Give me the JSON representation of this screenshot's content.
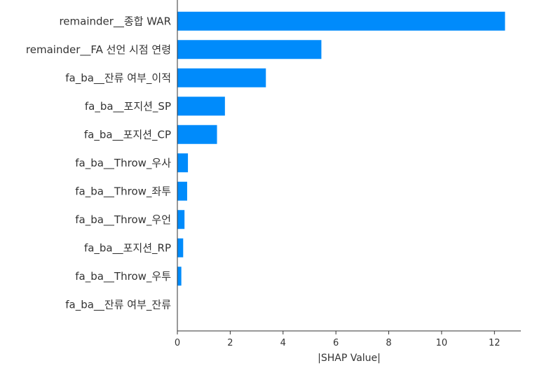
{
  "chart_data": {
    "type": "bar",
    "orientation": "horizontal",
    "categories": [
      "remainder__종합 WAR",
      "remainder__FA 선언 시점 연령",
      "fa_ba__잔류 여부_이적",
      "fa_ba__포지션_SP",
      "fa_ba__포지션_CP",
      "fa_ba__Throw_우사",
      "fa_ba__Throw_좌투",
      "fa_ba__Throw_우언",
      "fa_ba__포지션_RP",
      "fa_ba__Throw_우투",
      "fa_ba__잔류 여부_잔류"
    ],
    "values": [
      12.4,
      5.45,
      3.35,
      1.8,
      1.5,
      0.4,
      0.37,
      0.27,
      0.22,
      0.15,
      0.0
    ],
    "xlabel": "|SHAP Value|",
    "xlim": [
      0,
      13
    ],
    "xticks": [
      0,
      2,
      4,
      6,
      8,
      10,
      12
    ],
    "grid": false,
    "colors": {
      "bar": "#008bfb",
      "axis": "#333333",
      "text": "#333333"
    }
  }
}
